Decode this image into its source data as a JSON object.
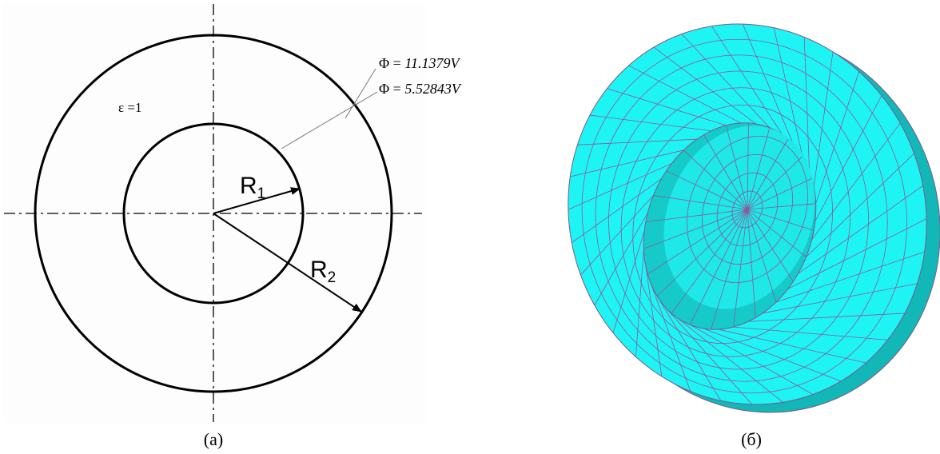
{
  "left": {
    "permittivity_label": "ε =1",
    "outer_potential": {
      "symbol": "Φ =",
      "value": "11.1379V"
    },
    "inner_potential": {
      "symbol": "Φ =",
      "value": "5.52843V"
    },
    "radius_1": {
      "letter": "R",
      "subscript": "1"
    },
    "radius_2": {
      "letter": "R",
      "subscript": "2"
    },
    "caption": "(a)"
  },
  "right": {
    "caption": "(б)"
  }
}
